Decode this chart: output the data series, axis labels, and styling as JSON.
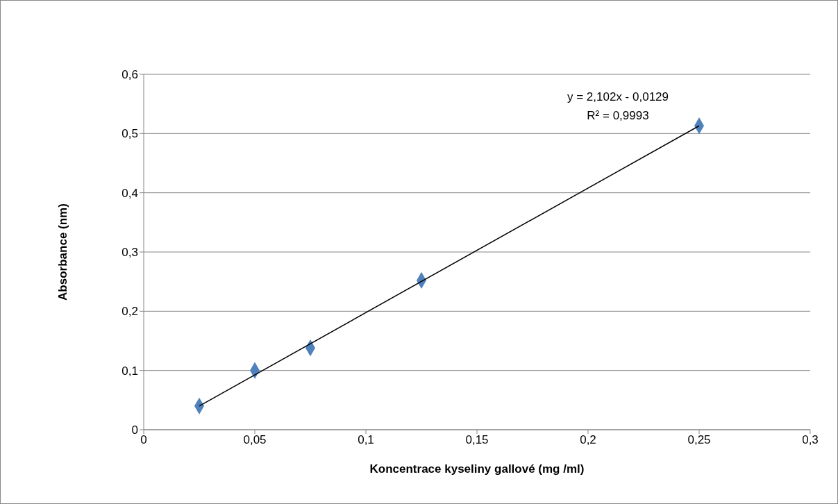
{
  "chart_data": {
    "type": "scatter",
    "xlabel": "Koncentrace kyseliny gallové (mg /ml)",
    "ylabel": "Absorbance (nm)",
    "xlim": [
      0,
      0.3
    ],
    "xticks": [
      0,
      {
        "value": 0.05,
        "label": "0,05"
      },
      {
        "value": 0.1,
        "label": "0,1"
      },
      {
        "value": 0.15,
        "label": "0,15"
      },
      {
        "value": 0.2,
        "label": "0,2"
      },
      {
        "value": 0.25,
        "label": "0,25"
      },
      {
        "value": 0.3,
        "label": "0,3"
      }
    ],
    "ylim": [
      0,
      0.6
    ],
    "yticks": [
      0,
      {
        "value": 0.1,
        "label": "0,1"
      },
      {
        "value": 0.2,
        "label": "0,2"
      },
      {
        "value": 0.3,
        "label": "0,3"
      },
      {
        "value": 0.4,
        "label": "0,4"
      },
      {
        "value": 0.5,
        "label": "0,5"
      },
      {
        "value": 0.6,
        "label": "0,6"
      }
    ],
    "grid": "y",
    "legend": false,
    "series": [
      {
        "color": "#4f81bd",
        "marker": "diamond",
        "x": [
          0.025,
          0.05,
          0.075,
          0.125,
          0.25
        ],
        "values": [
          0.04,
          0.1,
          0.138,
          0.252,
          0.513
        ]
      },
      {
        "type": "line",
        "color": "#000000",
        "marker": "none",
        "line_style": "solid",
        "x": [
          0.025,
          0.25
        ],
        "values": [
          0.04,
          0.513
        ]
      }
    ],
    "annotations": [
      "y = 2,102x - 0,0129",
      "R² = 0,9993"
    ]
  }
}
